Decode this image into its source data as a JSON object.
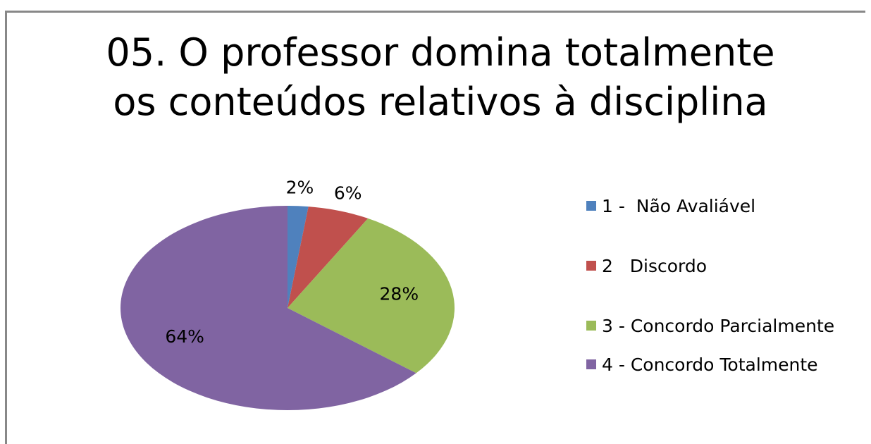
{
  "chart_data": {
    "type": "pie",
    "title": "05. O professor domina totalmente os conteúdos relativos à disciplina",
    "categories": [
      "1 -  Não Avaliável",
      "2   Discordo",
      "3 - Concordo Parcialmente",
      "4 - Concordo Totalmente"
    ],
    "values": [
      2,
      6,
      28,
      64
    ],
    "value_labels": [
      "2%",
      "6%",
      "28%",
      "64%"
    ],
    "colors": [
      "#4f81bd",
      "#c0504d",
      "#9bbb59",
      "#8064a2"
    ],
    "legend": "right"
  }
}
